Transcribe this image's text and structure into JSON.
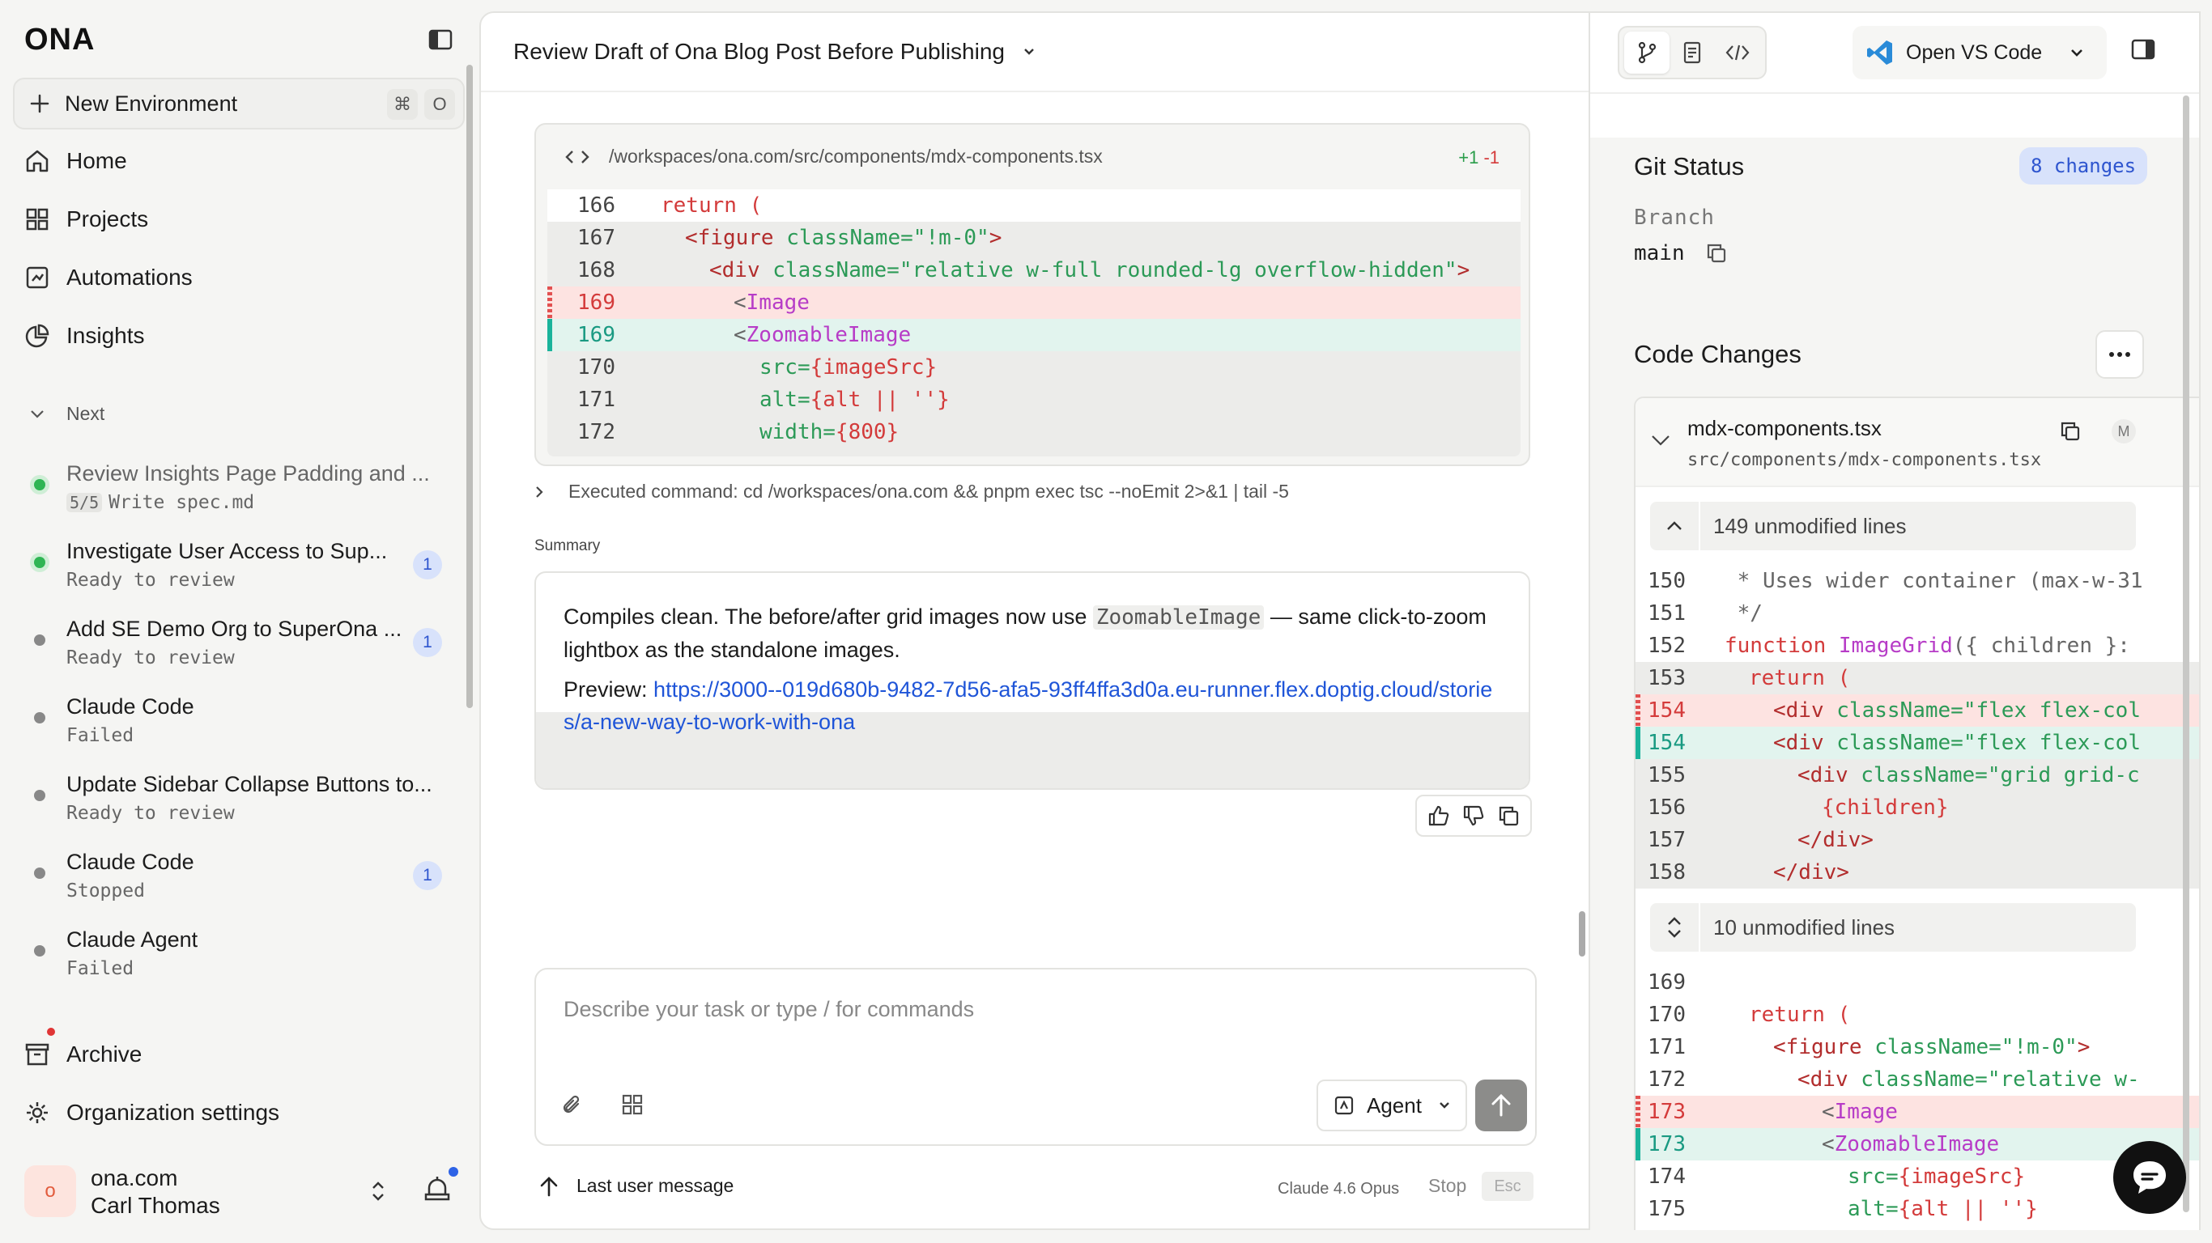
{
  "sidebar": {
    "logo": "ONA",
    "new_environment": "New Environment",
    "shortcut_keys": [
      "⌘",
      "O"
    ],
    "nav": [
      {
        "label": "Home",
        "icon": "home-icon"
      },
      {
        "label": "Projects",
        "icon": "grid-icon"
      },
      {
        "label": "Automations",
        "icon": "automations-icon"
      },
      {
        "label": "Insights",
        "icon": "pie-chart-icon"
      }
    ],
    "section_next": "Next",
    "environments": [
      {
        "title": "Review Insights Page Padding and ...",
        "tag": "5/5",
        "sub": "Write spec.md",
        "status": "running",
        "badge": ""
      },
      {
        "title": "Investigate User Access to Sup...",
        "sub": "Ready to review",
        "status": "running",
        "badge": "1"
      },
      {
        "title": "Add SE Demo Org to SuperOna ...",
        "sub": "Ready to review",
        "status": "idle",
        "badge": "1"
      },
      {
        "title": "Claude Code",
        "sub": "Failed",
        "status": "idle",
        "badge": ""
      },
      {
        "title": "Update Sidebar Collapse Buttons to...",
        "sub": "Ready to review",
        "status": "idle",
        "badge": ""
      },
      {
        "title": "Claude Code",
        "sub": "Stopped",
        "status": "idle",
        "badge": "1"
      },
      {
        "title": "Claude Agent",
        "sub": "Failed",
        "status": "idle",
        "badge": ""
      }
    ],
    "archive": "Archive",
    "org_settings": "Organization settings",
    "user": {
      "avatar_initial": "o",
      "org": "ona.com",
      "name": "Carl Thomas"
    }
  },
  "main": {
    "title": "Review Draft of Ona Blog Post Before Publishing",
    "code_card": {
      "path": "/workspaces/ona.com/src/components/mdx-components.tsx",
      "additions": "+1",
      "deletions": "-1",
      "lines": [
        {
          "n": "166",
          "text": "return ("
        },
        {
          "n": "167",
          "text": "<figure className=\"!m-0\">"
        },
        {
          "n": "168",
          "text": "<div className=\"relative w-full rounded-lg overflow-hidden\">"
        },
        {
          "n": "169",
          "text": "<Image"
        },
        {
          "n": "169",
          "text": "<ZoomableImage"
        },
        {
          "n": "170",
          "text": "src={imageSrc}"
        },
        {
          "n": "171",
          "text": "alt={alt || ''}"
        },
        {
          "n": "172",
          "text": "width={800}"
        }
      ]
    },
    "executed_command": "Executed command: cd /workspaces/ona.com && pnpm exec tsc --noEmit 2>&1 | tail -5",
    "summary_label": "Summary",
    "summary": {
      "p1_before": "Compiles clean. The before/after grid images now use ",
      "p1_code": "ZoomableImage",
      "p1_after": " — same click-to-zoom lightbox as the standalone images.",
      "preview_label": "Preview: ",
      "preview_link": "https://3000--019d680b-9482-7d56-afa5-93ff4ffa3d0a.eu-runner.flex.doptig.cloud/stories/a-new-way-to-work-with-ona"
    },
    "composer": {
      "placeholder": "Describe your task or type / for commands",
      "agent_label": "Agent"
    },
    "last_user_message": "Last user message",
    "model": "Claude 4.6 Opus",
    "stop": "Stop",
    "esc": "Esc"
  },
  "right_panel": {
    "open_vscode": "Open VS Code",
    "git_status_title": "Git Status",
    "changes_badge": "8 changes",
    "branch_label": "Branch",
    "branch_value": "main",
    "code_changes_title": "Code Changes",
    "file": {
      "name": "mdx-components.tsx",
      "path": "src/components/mdx-components.tsx",
      "status": "M"
    },
    "unmodified_top": "149 unmodified lines",
    "unmodified_mid": "10 unmodified lines",
    "lines_a": [
      {
        "n": "150",
        "text": " * Uses wider container (max-w-31"
      },
      {
        "n": "151",
        "text": " */"
      },
      {
        "n": "152",
        "text": "function ImageGrid({ children }:"
      },
      {
        "n": "153",
        "text": "return ("
      },
      {
        "n": "154",
        "text": "<div className=\"flex flex-col"
      },
      {
        "n": "154",
        "text": "<div className=\"flex flex-col"
      },
      {
        "n": "155",
        "text": "<div className=\"grid grid-c"
      },
      {
        "n": "156",
        "text": "{children}"
      },
      {
        "n": "157",
        "text": "</div>"
      },
      {
        "n": "158",
        "text": "</div>"
      }
    ],
    "lines_b": [
      {
        "n": "169",
        "text": ""
      },
      {
        "n": "170",
        "text": "return ("
      },
      {
        "n": "171",
        "text": "<figure className=\"!m-0\">"
      },
      {
        "n": "172",
        "text": "<div className=\"relative w-"
      },
      {
        "n": "173",
        "text": "<Image"
      },
      {
        "n": "173",
        "text": "<ZoomableImage"
      },
      {
        "n": "174",
        "text": "src={imageSrc}"
      },
      {
        "n": "175",
        "text": "alt={alt || ''}"
      }
    ]
  },
  "colors": {
    "accent_blue": "#2e55cf",
    "added": "#1ab39b",
    "removed": "#e25050",
    "running": "#2fb554"
  }
}
